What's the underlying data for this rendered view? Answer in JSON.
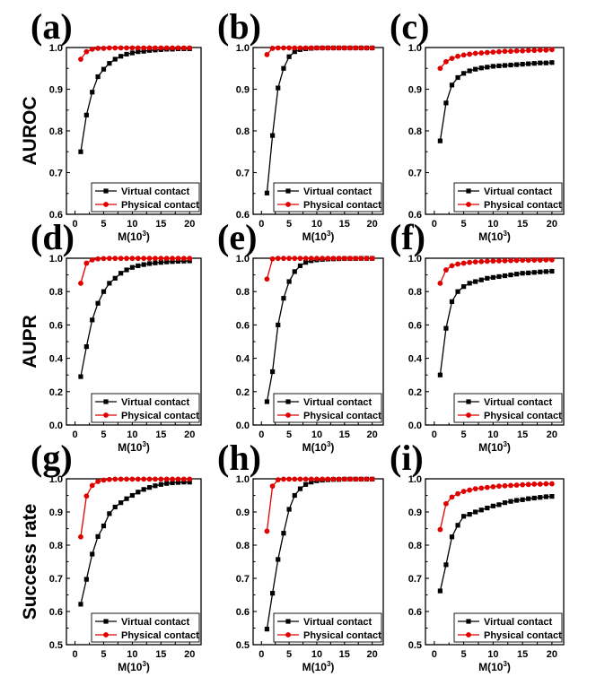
{
  "figure": {
    "row_labels": [
      "AUROC",
      "AUPR",
      "Success rate"
    ],
    "xlabel_base": "M(10",
    "xlabel_sup": "3",
    "xlabel_close": ")",
    "series_names": [
      "Virtual contact",
      "Physical contact"
    ],
    "series_colors": {
      "Virtual contact": "#000000",
      "Physical contact": "#e00000"
    },
    "markers": {
      "Virtual contact": "square",
      "Physical contact": "circle"
    }
  },
  "chart_data": [
    {
      "id": "a",
      "panel_label": "(a)",
      "type": "line",
      "ylabel": "AUROC",
      "xlim": [
        -1.5,
        22
      ],
      "ylim": [
        0.6,
        1.0
      ],
      "xticks": [
        0,
        5,
        10,
        15,
        20
      ],
      "xtick_labels": [
        "0",
        "5",
        "10",
        "15",
        "20"
      ],
      "yticks": [
        0.6,
        0.7,
        0.8,
        0.9,
        1.0
      ],
      "ytick_labels": [
        "0.6",
        "0.7",
        "0.8",
        "0.9",
        "1.0"
      ],
      "x": [
        1,
        2,
        3,
        4,
        5,
        6,
        7,
        8,
        9,
        10,
        11,
        12,
        13,
        14,
        15,
        16,
        17,
        18,
        19,
        20
      ],
      "series": [
        {
          "name": "Virtual contact",
          "values": [
            0.75,
            0.838,
            0.893,
            0.93,
            0.948,
            0.962,
            0.972,
            0.979,
            0.984,
            0.987,
            0.99,
            0.991,
            0.993,
            0.994,
            0.995,
            0.996,
            0.996,
            0.997,
            0.997,
            0.997
          ]
        },
        {
          "name": "Physical contact",
          "values": [
            0.972,
            0.99,
            0.996,
            0.998,
            0.998,
            0.999,
            0.999,
            0.999,
            0.999,
            0.999,
            0.999,
            0.999,
            0.999,
            0.999,
            0.999,
            0.999,
            0.999,
            0.999,
            0.999,
            0.999
          ]
        }
      ]
    },
    {
      "id": "b",
      "panel_label": "(b)",
      "type": "line",
      "ylabel": "",
      "xlim": [
        -1.5,
        22
      ],
      "ylim": [
        0.6,
        1.0
      ],
      "xticks": [
        0,
        5,
        10,
        15,
        20
      ],
      "xtick_labels": [
        "0",
        "5",
        "10",
        "15",
        "20"
      ],
      "yticks": [
        0.6,
        0.7,
        0.8,
        0.9,
        1.0
      ],
      "ytick_labels": [
        "0.6",
        "0.7",
        "0.8",
        "0.9",
        "1.0"
      ],
      "x": [
        1,
        2,
        3,
        4,
        5,
        6,
        7,
        8,
        9,
        10,
        11,
        12,
        13,
        14,
        15,
        16,
        17,
        18,
        19,
        20
      ],
      "series": [
        {
          "name": "Virtual contact",
          "values": [
            0.651,
            0.789,
            0.903,
            0.95,
            0.978,
            0.99,
            0.995,
            0.997,
            0.998,
            0.999,
            0.999,
            0.999,
            0.999,
            0.999,
            0.999,
            0.999,
            0.999,
            0.999,
            0.999,
            0.999
          ]
        },
        {
          "name": "Physical contact",
          "values": [
            0.983,
            0.998,
            0.999,
            0.999,
            0.999,
            0.999,
            0.999,
            0.999,
            0.999,
            0.999,
            0.999,
            0.999,
            0.999,
            0.999,
            0.999,
            0.999,
            0.999,
            0.999,
            0.999,
            0.999
          ]
        }
      ]
    },
    {
      "id": "c",
      "panel_label": "(c)",
      "type": "line",
      "ylabel": "",
      "xlim": [
        -1.5,
        22
      ],
      "ylim": [
        0.6,
        1.0
      ],
      "xticks": [
        0,
        5,
        10,
        15,
        20
      ],
      "xtick_labels": [
        "0",
        "5",
        "10",
        "15",
        "20"
      ],
      "yticks": [
        0.6,
        0.7,
        0.8,
        0.9,
        1.0
      ],
      "ytick_labels": [
        "0.6",
        "0.7",
        "0.8",
        "0.9",
        "1.0"
      ],
      "x": [
        1,
        2,
        3,
        4,
        5,
        6,
        7,
        8,
        9,
        10,
        11,
        12,
        13,
        14,
        15,
        16,
        17,
        18,
        19,
        20
      ],
      "series": [
        {
          "name": "Virtual contact",
          "values": [
            0.776,
            0.867,
            0.91,
            0.928,
            0.938,
            0.944,
            0.948,
            0.951,
            0.953,
            0.955,
            0.956,
            0.957,
            0.958,
            0.959,
            0.96,
            0.961,
            0.962,
            0.963,
            0.963,
            0.964
          ]
        },
        {
          "name": "Physical contact",
          "values": [
            0.95,
            0.966,
            0.974,
            0.979,
            0.982,
            0.984,
            0.986,
            0.987,
            0.988,
            0.989,
            0.99,
            0.991,
            0.991,
            0.992,
            0.992,
            0.993,
            0.993,
            0.994,
            0.994,
            0.995
          ]
        }
      ]
    },
    {
      "id": "d",
      "panel_label": "(d)",
      "type": "line",
      "ylabel": "AUPR",
      "xlim": [
        -1.5,
        22
      ],
      "ylim": [
        0.0,
        1.0
      ],
      "xticks": [
        0,
        5,
        10,
        15,
        20
      ],
      "xtick_labels": [
        "0",
        "5",
        "10",
        "15",
        "20"
      ],
      "yticks": [
        0.0,
        0.2,
        0.4,
        0.6,
        0.8,
        1.0
      ],
      "ytick_labels": [
        "0.0",
        "0.2",
        "0.4",
        "0.6",
        "0.8",
        "1.0"
      ],
      "x": [
        1,
        2,
        3,
        4,
        5,
        6,
        7,
        8,
        9,
        10,
        11,
        12,
        13,
        14,
        15,
        16,
        17,
        18,
        19,
        20
      ],
      "series": [
        {
          "name": "Virtual contact",
          "values": [
            0.29,
            0.47,
            0.63,
            0.73,
            0.8,
            0.85,
            0.88,
            0.91,
            0.93,
            0.945,
            0.955,
            0.962,
            0.968,
            0.972,
            0.975,
            0.978,
            0.98,
            0.982,
            0.983,
            0.984
          ]
        },
        {
          "name": "Physical contact",
          "values": [
            0.85,
            0.97,
            0.99,
            0.996,
            0.998,
            0.999,
            0.999,
            0.999,
            0.999,
            0.999,
            0.999,
            0.999,
            0.999,
            0.999,
            0.999,
            0.999,
            0.999,
            0.999,
            0.999,
            0.999
          ]
        }
      ]
    },
    {
      "id": "e",
      "panel_label": "(e)",
      "type": "line",
      "ylabel": "",
      "xlim": [
        -1.5,
        22
      ],
      "ylim": [
        0.0,
        1.0
      ],
      "xticks": [
        0,
        5,
        10,
        15,
        20
      ],
      "xtick_labels": [
        "0",
        "5",
        "10",
        "15",
        "20"
      ],
      "yticks": [
        0.0,
        0.2,
        0.4,
        0.6,
        0.8,
        1.0
      ],
      "ytick_labels": [
        "0.0",
        "0.2",
        "0.4",
        "0.6",
        "0.8",
        "1.0"
      ],
      "x": [
        1,
        2,
        3,
        4,
        5,
        6,
        7,
        8,
        9,
        10,
        11,
        12,
        13,
        14,
        15,
        16,
        17,
        18,
        19,
        20
      ],
      "series": [
        {
          "name": "Virtual contact",
          "values": [
            0.14,
            0.32,
            0.6,
            0.76,
            0.86,
            0.92,
            0.955,
            0.975,
            0.985,
            0.99,
            0.993,
            0.995,
            0.996,
            0.997,
            0.998,
            0.998,
            0.998,
            0.999,
            0.999,
            0.999
          ]
        },
        {
          "name": "Physical contact",
          "values": [
            0.875,
            0.996,
            0.999,
            0.999,
            0.999,
            0.999,
            0.999,
            0.999,
            0.999,
            0.999,
            0.999,
            0.999,
            0.999,
            0.999,
            0.999,
            0.999,
            0.999,
            0.999,
            0.999,
            0.999
          ]
        }
      ]
    },
    {
      "id": "f",
      "panel_label": "(f)",
      "type": "line",
      "ylabel": "",
      "xlim": [
        -1.5,
        22
      ],
      "ylim": [
        0.0,
        1.0
      ],
      "xticks": [
        0,
        5,
        10,
        15,
        20
      ],
      "xtick_labels": [
        "0",
        "5",
        "10",
        "15",
        "20"
      ],
      "yticks": [
        0.0,
        0.2,
        0.4,
        0.6,
        0.8,
        1.0
      ],
      "ytick_labels": [
        "0.0",
        "0.2",
        "0.4",
        "0.6",
        "0.8",
        "1.0"
      ],
      "x": [
        1,
        2,
        3,
        4,
        5,
        6,
        7,
        8,
        9,
        10,
        11,
        12,
        13,
        14,
        15,
        16,
        17,
        18,
        19,
        20
      ],
      "series": [
        {
          "name": "Virtual contact",
          "values": [
            0.3,
            0.58,
            0.74,
            0.8,
            0.83,
            0.85,
            0.86,
            0.87,
            0.88,
            0.885,
            0.89,
            0.895,
            0.9,
            0.905,
            0.91,
            0.912,
            0.915,
            0.918,
            0.92,
            0.922
          ]
        },
        {
          "name": "Physical contact",
          "values": [
            0.85,
            0.93,
            0.955,
            0.965,
            0.97,
            0.975,
            0.978,
            0.98,
            0.982,
            0.983,
            0.984,
            0.985,
            0.986,
            0.987,
            0.988,
            0.988,
            0.989,
            0.989,
            0.99,
            0.99
          ]
        }
      ]
    },
    {
      "id": "g",
      "panel_label": "(g)",
      "type": "line",
      "ylabel": "Success rate",
      "xlim": [
        -1.5,
        22
      ],
      "ylim": [
        0.5,
        1.0
      ],
      "xticks": [
        0,
        5,
        10,
        15,
        20
      ],
      "xtick_labels": [
        "0",
        "5",
        "10",
        "15",
        "20"
      ],
      "yticks": [
        0.5,
        0.6,
        0.7,
        0.8,
        0.9,
        1.0
      ],
      "ytick_labels": [
        "0.5",
        "0.6",
        "0.7",
        "0.8",
        "0.9",
        "1.0"
      ],
      "x": [
        1,
        2,
        3,
        4,
        5,
        6,
        7,
        8,
        9,
        10,
        11,
        12,
        13,
        14,
        15,
        16,
        17,
        18,
        19,
        20
      ],
      "series": [
        {
          "name": "Virtual contact",
          "values": [
            0.622,
            0.697,
            0.773,
            0.826,
            0.858,
            0.895,
            0.915,
            0.928,
            0.94,
            0.95,
            0.96,
            0.968,
            0.974,
            0.979,
            0.983,
            0.986,
            0.988,
            0.989,
            0.99,
            0.99
          ]
        },
        {
          "name": "Physical contact",
          "values": [
            0.825,
            0.948,
            0.98,
            0.992,
            0.996,
            0.998,
            0.999,
            0.999,
            0.999,
            0.999,
            0.999,
            0.999,
            0.999,
            0.999,
            0.999,
            0.999,
            0.999,
            0.999,
            0.999,
            0.999
          ]
        }
      ]
    },
    {
      "id": "h",
      "panel_label": "(h)",
      "type": "line",
      "ylabel": "",
      "xlim": [
        -1.5,
        22
      ],
      "ylim": [
        0.5,
        1.0
      ],
      "xticks": [
        0,
        5,
        10,
        15,
        20
      ],
      "xtick_labels": [
        "0",
        "5",
        "10",
        "15",
        "20"
      ],
      "yticks": [
        0.5,
        0.6,
        0.7,
        0.8,
        0.9,
        1.0
      ],
      "ytick_labels": [
        "0.5",
        "0.6",
        "0.7",
        "0.8",
        "0.9",
        "1.0"
      ],
      "x": [
        1,
        2,
        3,
        4,
        5,
        6,
        7,
        8,
        9,
        10,
        11,
        12,
        13,
        14,
        15,
        16,
        17,
        18,
        19,
        20
      ],
      "series": [
        {
          "name": "Virtual contact",
          "values": [
            0.547,
            0.655,
            0.757,
            0.836,
            0.908,
            0.95,
            0.97,
            0.983,
            0.99,
            0.994,
            0.996,
            0.997,
            0.998,
            0.998,
            0.999,
            0.999,
            0.999,
            0.999,
            0.999,
            0.999
          ]
        },
        {
          "name": "Physical contact",
          "values": [
            0.842,
            0.978,
            0.997,
            0.999,
            0.999,
            0.999,
            0.999,
            0.999,
            0.999,
            0.999,
            0.999,
            0.999,
            0.999,
            0.999,
            0.999,
            0.999,
            0.999,
            0.999,
            0.999,
            0.999
          ]
        }
      ]
    },
    {
      "id": "i",
      "panel_label": "(i)",
      "type": "line",
      "ylabel": "",
      "xlim": [
        -1.5,
        22
      ],
      "ylim": [
        0.5,
        1.0
      ],
      "xticks": [
        0,
        5,
        10,
        15,
        20
      ],
      "xtick_labels": [
        "0",
        "5",
        "10",
        "15",
        "20"
      ],
      "yticks": [
        0.5,
        0.6,
        0.7,
        0.8,
        0.9,
        1.0
      ],
      "ytick_labels": [
        "0.5",
        "0.6",
        "0.7",
        "0.8",
        "0.9",
        "1.0"
      ],
      "x": [
        1,
        2,
        3,
        4,
        5,
        6,
        7,
        8,
        9,
        10,
        11,
        12,
        13,
        14,
        15,
        16,
        17,
        18,
        19,
        20
      ],
      "series": [
        {
          "name": "Virtual contact",
          "values": [
            0.662,
            0.741,
            0.825,
            0.86,
            0.887,
            0.893,
            0.9,
            0.906,
            0.912,
            0.918,
            0.922,
            0.928,
            0.932,
            0.935,
            0.937,
            0.94,
            0.942,
            0.944,
            0.946,
            0.947
          ]
        },
        {
          "name": "Physical contact",
          "values": [
            0.847,
            0.925,
            0.945,
            0.955,
            0.962,
            0.966,
            0.97,
            0.972,
            0.974,
            0.976,
            0.978,
            0.979,
            0.98,
            0.981,
            0.982,
            0.983,
            0.984,
            0.984,
            0.985,
            0.985
          ]
        }
      ]
    }
  ]
}
